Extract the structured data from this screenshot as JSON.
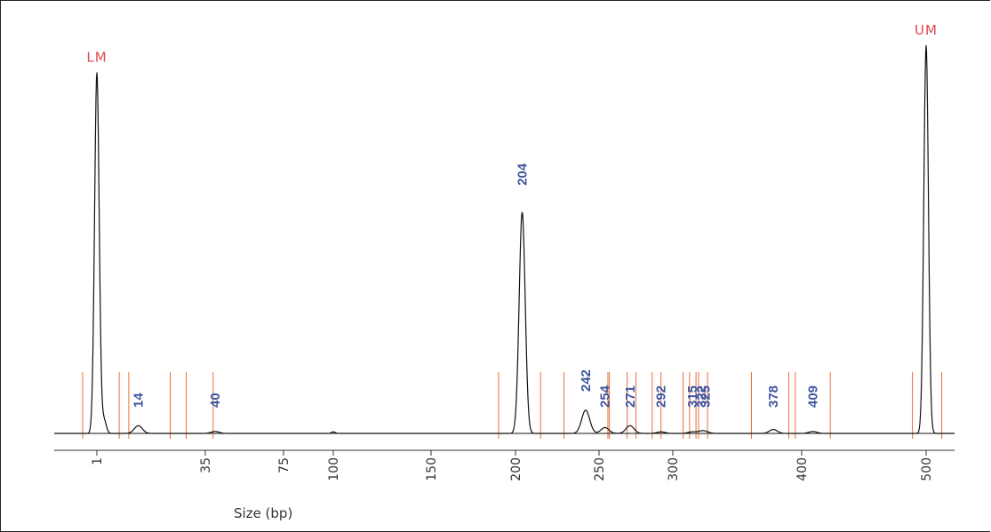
{
  "chart_data": {
    "type": "line",
    "title": "",
    "xlabel": "Size (bp)",
    "ylabel": "",
    "x_ticks": [
      {
        "label": "1",
        "value": 1
      },
      {
        "label": "35",
        "value": 35
      },
      {
        "label": "75",
        "value": 75
      },
      {
        "label": "100",
        "value": 100
      },
      {
        "label": "150",
        "value": 150
      },
      {
        "label": "200",
        "value": 200
      },
      {
        "label": "250",
        "value": 250
      },
      {
        "label": "300",
        "value": 300
      },
      {
        "label": "400",
        "value": 400
      },
      {
        "label": "500",
        "value": 500
      }
    ],
    "marker_peaks": [
      {
        "label": "LM",
        "x": 1,
        "height": 0.93
      },
      {
        "label": "UM",
        "x": 500,
        "height": 1.0
      }
    ],
    "sample_peaks": [
      {
        "label": "14",
        "x": 14,
        "height": 0.02
      },
      {
        "label": "40",
        "x": 40,
        "height": 0.005
      },
      {
        "label": "204",
        "x": 204,
        "height": 0.57
      },
      {
        "label": "242",
        "x": 242,
        "height": 0.06
      },
      {
        "label": "254",
        "x": 254,
        "height": 0.015
      },
      {
        "label": "271",
        "x": 271,
        "height": 0.02
      },
      {
        "label": "292",
        "x": 292,
        "height": 0.004
      },
      {
        "label": "315",
        "x": 315,
        "height": 0.004
      },
      {
        "label": "322",
        "x": 322,
        "height": 0.004
      },
      {
        "label": "325",
        "x": 325,
        "height": 0.004
      },
      {
        "label": "378",
        "x": 378,
        "height": 0.01
      },
      {
        "label": "409",
        "x": 409,
        "height": 0.005
      }
    ],
    "baseline_artifacts": [
      {
        "x": 100,
        "height": 0.004
      }
    ],
    "region_boundaries": [
      [
        -6,
        8
      ],
      [
        11,
        24
      ],
      [
        29,
        39
      ],
      [
        190,
        215
      ],
      [
        229,
        256
      ],
      [
        257,
        269
      ],
      [
        275,
        286
      ],
      [
        292,
        308
      ],
      [
        313,
        318
      ],
      [
        320,
        327
      ],
      [
        361,
        390
      ],
      [
        395,
        423
      ],
      [
        489,
        511
      ]
    ],
    "colors": {
      "trace": "#111111",
      "boundary": "#e8703a",
      "peak_label": "#4054a0",
      "marker_label": "#e0474b",
      "axis": "#333333"
    },
    "grid": false,
    "legend": "none"
  }
}
